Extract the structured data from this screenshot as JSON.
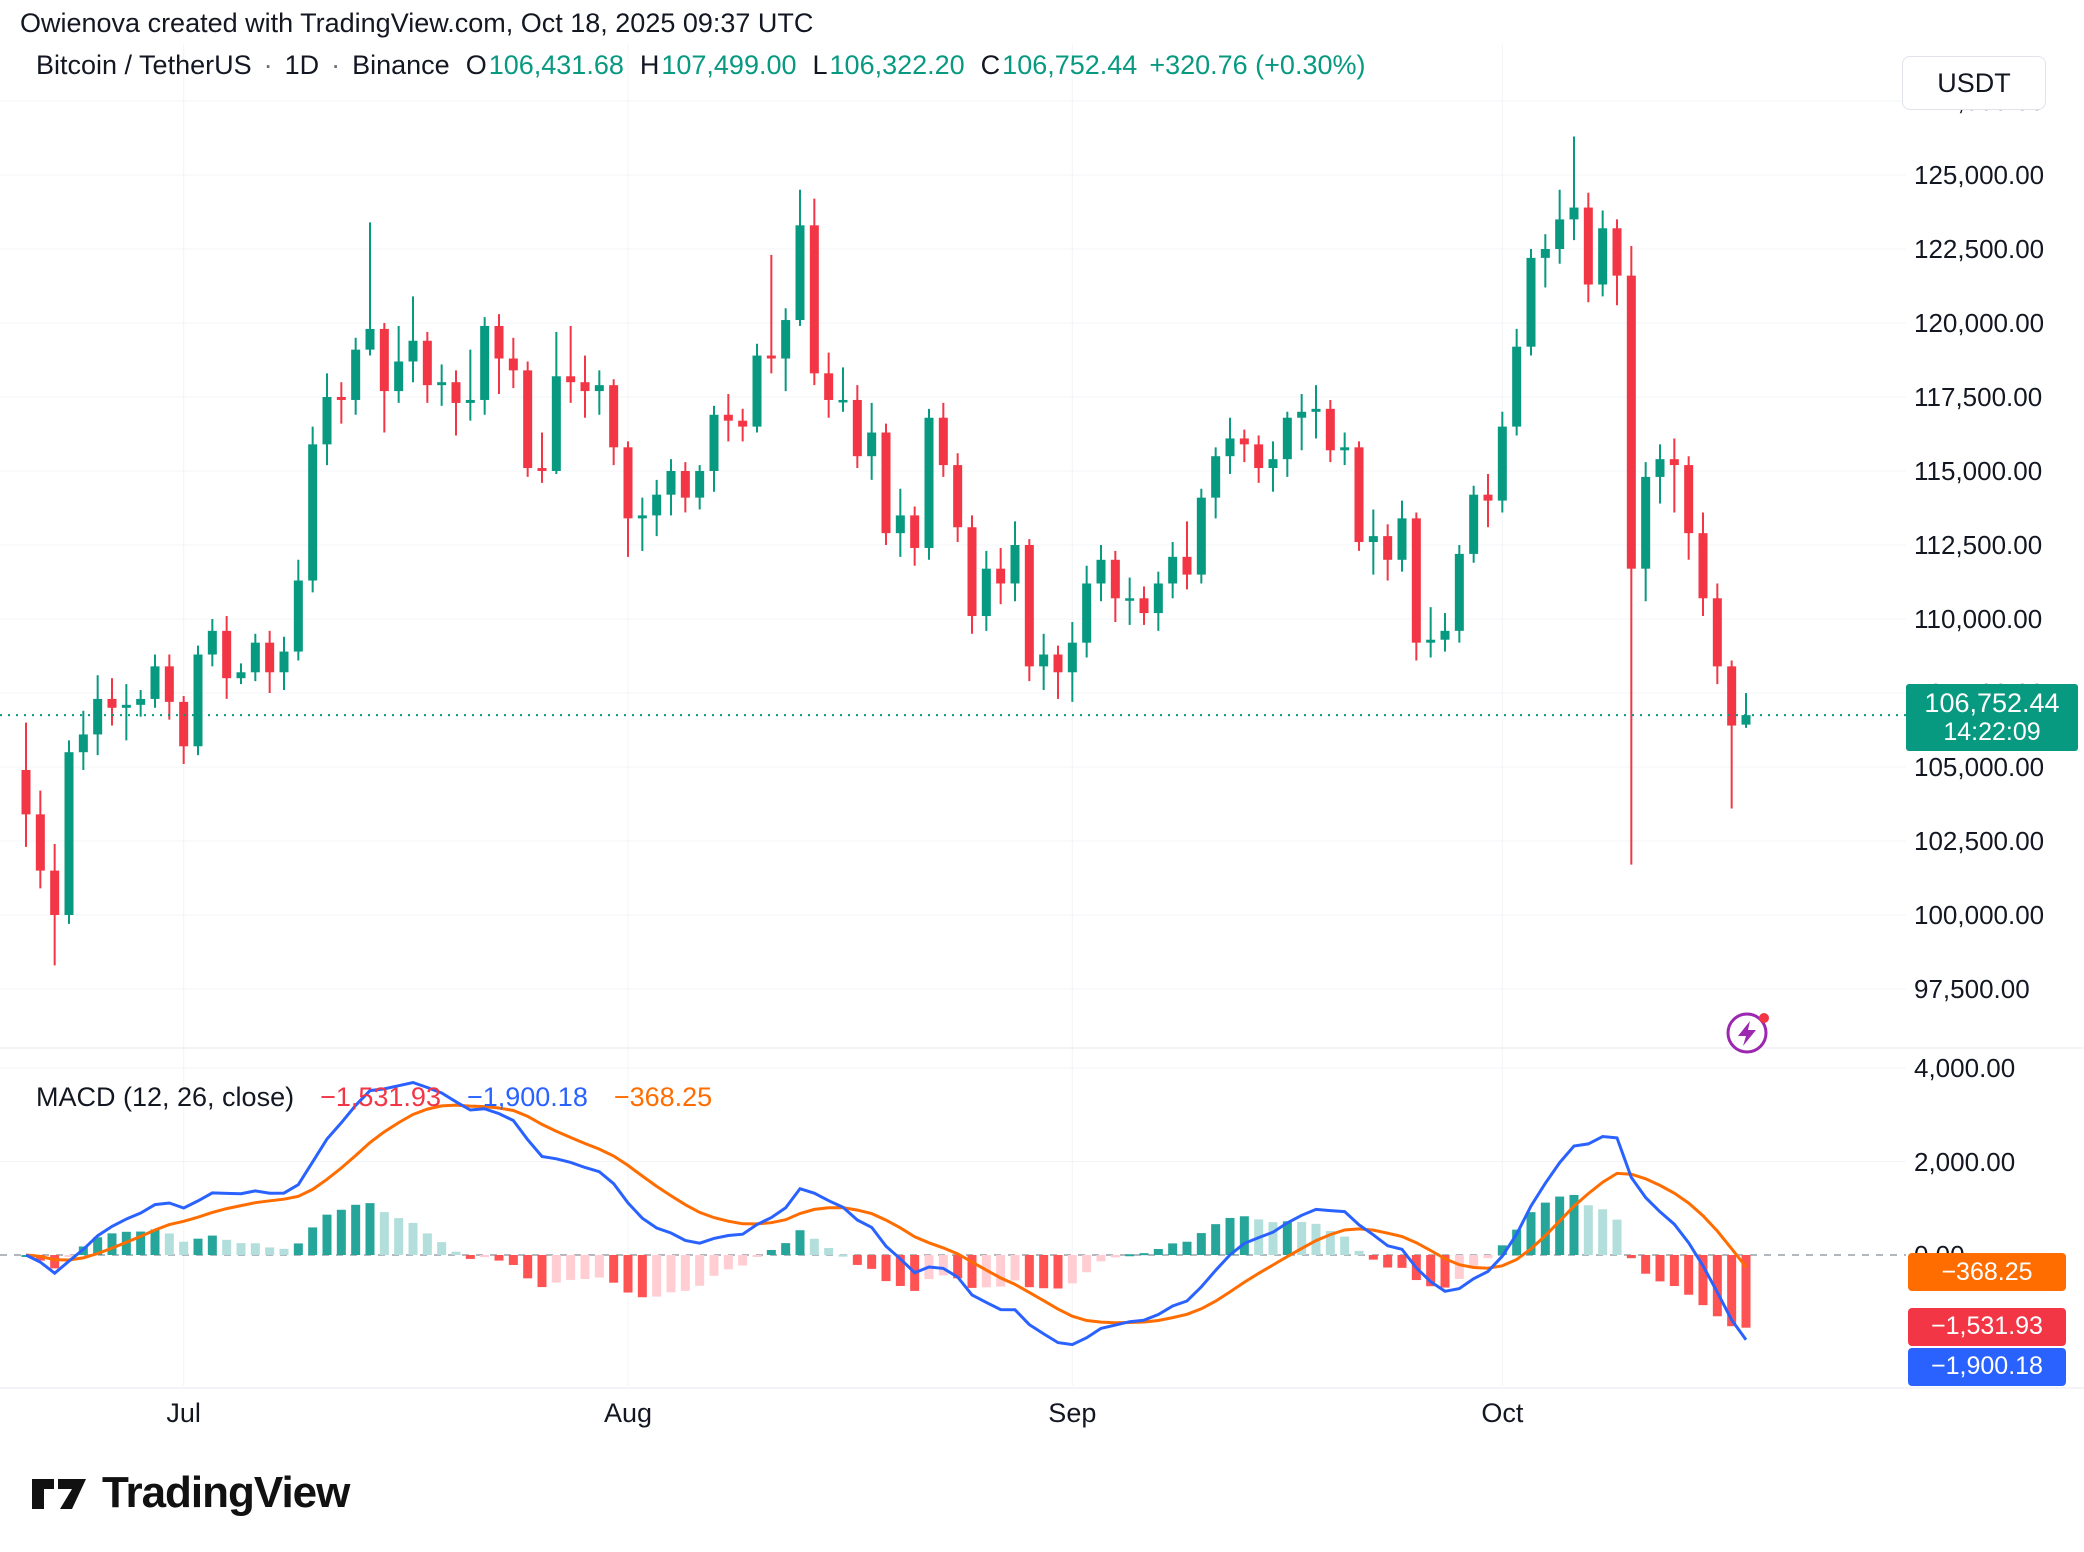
{
  "attribution": "Owienova created with TradingView.com, Oct 18, 2025 09:37 UTC",
  "header": {
    "symbol": "Bitcoin / TetherUS",
    "separator": "·",
    "interval": "1D",
    "exchange": "Binance",
    "ohlc": [
      {
        "key": "O",
        "value": "106,431.68"
      },
      {
        "key": "H",
        "value": "107,499.00"
      },
      {
        "key": "L",
        "value": "106,322.20"
      },
      {
        "key": "C",
        "value": "106,752.44"
      }
    ],
    "change": "+320.76 (+0.30%)",
    "currency_button": "USDT"
  },
  "price_line": {
    "value": 106752.44,
    "label": "106,752.44",
    "countdown": "14:22:09"
  },
  "price_scale": {
    "ticks": [
      {
        "value": 127500,
        "label": "127,500.00"
      },
      {
        "value": 125000,
        "label": "125,000.00"
      },
      {
        "value": 122500,
        "label": "122,500.00"
      },
      {
        "value": 120000,
        "label": "120,000.00"
      },
      {
        "value": 117500,
        "label": "117,500.00"
      },
      {
        "value": 115000,
        "label": "115,000.00"
      },
      {
        "value": 112500,
        "label": "112,500.00"
      },
      {
        "value": 110000,
        "label": "110,000.00"
      },
      {
        "value": 107500,
        "label": "107,500.00"
      },
      {
        "value": 105000,
        "label": "105,000.00"
      },
      {
        "value": 102500,
        "label": "102,500.00"
      },
      {
        "value": 100000,
        "label": "100,000.00"
      },
      {
        "value": 97500,
        "label": "97,500.00"
      }
    ]
  },
  "macd_panel": {
    "title": "MACD (12, 26, close)",
    "header_values": [
      {
        "name": "histogram",
        "label": "−1,531.93",
        "color": "#f23645"
      },
      {
        "name": "macd",
        "label": "−1,900.18",
        "color": "#2962ff"
      },
      {
        "name": "signal",
        "label": "−368.25",
        "color": "#ff6d00"
      }
    ],
    "ticks": [
      {
        "value": 4000,
        "label": "4,000.00"
      },
      {
        "value": 2000,
        "label": "2,000.00"
      },
      {
        "value": 0,
        "label": "0.00"
      }
    ],
    "badges": [
      {
        "name": "signal",
        "label": "−368.25",
        "value": -368.25,
        "color": "#ff6d00"
      },
      {
        "name": "histogram",
        "label": "−1,531.93",
        "value": -1531.93,
        "color": "#f23645"
      },
      {
        "name": "macd",
        "label": "−1,900.18",
        "value": -1900.18,
        "color": "#2962ff"
      }
    ]
  },
  "time_axis": {
    "labels": [
      {
        "text": "Jul",
        "index": 11
      },
      {
        "text": "Aug",
        "index": 42
      },
      {
        "text": "Sep",
        "index": 73
      },
      {
        "text": "Oct",
        "index": 103
      }
    ]
  },
  "logo": {
    "text": "TradingView"
  },
  "colors": {
    "up": "#089981",
    "down": "#f23645",
    "macd_line": "#2962ff",
    "macd_signal": "#ff6d00",
    "hist_up": "#26a69a",
    "hist_up_fade": "#b2dfdb",
    "hist_down": "#ff5252",
    "hist_down_fade": "#ffcdd2",
    "grid": "#f2f4f7",
    "zero_line": "#9aa0aa",
    "price_badge_bg": "#089981",
    "flash_purple": "#9c27b0",
    "dot_red": "#f23645"
  },
  "chart_data": {
    "type": "candlestick",
    "title": "Bitcoin / TetherUS · 1D · Binance",
    "interval": "1D",
    "quote_currency": "USDT",
    "last_close": 106752.44,
    "price_axis_ticks": [
      127500,
      125000,
      122500,
      120000,
      117500,
      115000,
      112500,
      110000,
      107500,
      105000,
      102500,
      100000,
      97500
    ],
    "macd_axis_ticks": [
      4000,
      2000,
      0
    ],
    "indicator": {
      "type": "macd",
      "params": [
        12,
        26,
        9
      ],
      "source": "close",
      "current": {
        "histogram": -1531.93,
        "macd": -1900.18,
        "signal": -368.25
      }
    },
    "month_start_indices": {
      "Jul": 11,
      "Aug": 42,
      "Sep": 73,
      "Oct": 103
    },
    "candles": [
      [
        104900,
        106500,
        102300,
        103400
      ],
      [
        103400,
        104200,
        100900,
        101500
      ],
      [
        101500,
        102400,
        98300,
        100000
      ],
      [
        100000,
        105900,
        99700,
        105500
      ],
      [
        105500,
        106900,
        104900,
        106100
      ],
      [
        106100,
        108100,
        105400,
        107300
      ],
      [
        107300,
        108000,
        106400,
        107000
      ],
      [
        107000,
        107800,
        105900,
        107100
      ],
      [
        107100,
        107600,
        106700,
        107300
      ],
      [
        107300,
        108800,
        107000,
        108400
      ],
      [
        108400,
        108800,
        106600,
        107200
      ],
      [
        107200,
        107400,
        105100,
        105700
      ],
      [
        105700,
        109100,
        105400,
        108800
      ],
      [
        108800,
        110000,
        108400,
        109600
      ],
      [
        109600,
        110100,
        107300,
        108000
      ],
      [
        108000,
        108500,
        107800,
        108200
      ],
      [
        108200,
        109500,
        107900,
        109200
      ],
      [
        109200,
        109600,
        107500,
        108200
      ],
      [
        108200,
        109400,
        107600,
        108900
      ],
      [
        108900,
        112000,
        108600,
        111300
      ],
      [
        111300,
        116500,
        110900,
        115900
      ],
      [
        115900,
        118300,
        115200,
        117500
      ],
      [
        117500,
        118000,
        116600,
        117400
      ],
      [
        117400,
        119500,
        116900,
        119100
      ],
      [
        119100,
        123400,
        118900,
        119800
      ],
      [
        119800,
        120000,
        116300,
        117700
      ],
      [
        117700,
        119900,
        117300,
        118700
      ],
      [
        118700,
        120900,
        118000,
        119400
      ],
      [
        119400,
        119700,
        117300,
        117900
      ],
      [
        117900,
        118600,
        117200,
        118000
      ],
      [
        118000,
        118400,
        116200,
        117300
      ],
      [
        117300,
        119100,
        116700,
        117400
      ],
      [
        117400,
        120200,
        116900,
        119900
      ],
      [
        119900,
        120300,
        117600,
        118800
      ],
      [
        118800,
        119500,
        117800,
        118400
      ],
      [
        118400,
        118700,
        114800,
        115100
      ],
      [
        115100,
        116300,
        114600,
        115000
      ],
      [
        115000,
        119700,
        114900,
        118200
      ],
      [
        118200,
        119900,
        117300,
        118000
      ],
      [
        118000,
        118900,
        116800,
        117700
      ],
      [
        117700,
        118400,
        116900,
        117900
      ],
      [
        117900,
        118100,
        115200,
        115800
      ],
      [
        115800,
        116000,
        112100,
        113400
      ],
      [
        113400,
        114100,
        112300,
        113500
      ],
      [
        113500,
        114700,
        112800,
        114200
      ],
      [
        114200,
        115400,
        113500,
        115000
      ],
      [
        115000,
        115300,
        113600,
        114100
      ],
      [
        114100,
        115200,
        113700,
        115000
      ],
      [
        115000,
        117200,
        114300,
        116900
      ],
      [
        116900,
        117600,
        116000,
        116700
      ],
      [
        116700,
        117100,
        116000,
        116500
      ],
      [
        116500,
        119300,
        116300,
        118900
      ],
      [
        118900,
        122300,
        118300,
        118800
      ],
      [
        118800,
        120500,
        117700,
        120100
      ],
      [
        120100,
        124500,
        119900,
        123300
      ],
      [
        123300,
        124200,
        117900,
        118300
      ],
      [
        118300,
        119000,
        116800,
        117400
      ],
      [
        117400,
        118500,
        117000,
        117400
      ],
      [
        117400,
        117900,
        115100,
        115500
      ],
      [
        115500,
        117300,
        114700,
        116300
      ],
      [
        116300,
        116600,
        112500,
        112900
      ],
      [
        112900,
        114400,
        112100,
        113500
      ],
      [
        113500,
        113800,
        111800,
        112400
      ],
      [
        112400,
        117100,
        112000,
        116800
      ],
      [
        116800,
        117300,
        114800,
        115200
      ],
      [
        115200,
        115600,
        112600,
        113100
      ],
      [
        113100,
        113500,
        109500,
        110100
      ],
      [
        110100,
        112300,
        109600,
        111700
      ],
      [
        111700,
        112400,
        110500,
        111200
      ],
      [
        111200,
        113300,
        110600,
        112500
      ],
      [
        112500,
        112700,
        107900,
        108400
      ],
      [
        108400,
        109500,
        107600,
        108800
      ],
      [
        108800,
        109100,
        107300,
        108200
      ],
      [
        108200,
        109900,
        107200,
        109200
      ],
      [
        109200,
        111800,
        108700,
        111200
      ],
      [
        111200,
        112500,
        110600,
        112000
      ],
      [
        112000,
        112300,
        109900,
        110700
      ],
      [
        110700,
        111400,
        109800,
        110700
      ],
      [
        110700,
        111100,
        109800,
        110200
      ],
      [
        110200,
        111600,
        109600,
        111200
      ],
      [
        111200,
        112600,
        110700,
        112100
      ],
      [
        112100,
        113300,
        111000,
        111500
      ],
      [
        111500,
        114400,
        111200,
        114100
      ],
      [
        114100,
        115800,
        113400,
        115500
      ],
      [
        115500,
        116800,
        114900,
        116100
      ],
      [
        116100,
        116400,
        115300,
        115900
      ],
      [
        115900,
        116200,
        114600,
        115100
      ],
      [
        115100,
        116000,
        114300,
        115400
      ],
      [
        115400,
        117000,
        114800,
        116800
      ],
      [
        116800,
        117600,
        115700,
        117000
      ],
      [
        117000,
        117900,
        116100,
        117100
      ],
      [
        117100,
        117400,
        115300,
        115700
      ],
      [
        115700,
        116300,
        115200,
        115800
      ],
      [
        115800,
        116000,
        112300,
        112600
      ],
      [
        112600,
        113700,
        111500,
        112800
      ],
      [
        112800,
        113200,
        111300,
        112000
      ],
      [
        112000,
        114000,
        111600,
        113400
      ],
      [
        113400,
        113600,
        108600,
        109200
      ],
      [
        109200,
        110400,
        108700,
        109300
      ],
      [
        109300,
        110200,
        108900,
        109600
      ],
      [
        109600,
        112500,
        109200,
        112200
      ],
      [
        112200,
        114500,
        111900,
        114200
      ],
      [
        114200,
        114900,
        113100,
        114000
      ],
      [
        114000,
        117000,
        113600,
        116500
      ],
      [
        116500,
        119800,
        116200,
        119200
      ],
      [
        119200,
        122500,
        118900,
        122200
      ],
      [
        122200,
        123000,
        121200,
        122500
      ],
      [
        122500,
        124500,
        122000,
        123500
      ],
      [
        123500,
        126300,
        122800,
        123900
      ],
      [
        123900,
        124400,
        120700,
        121300
      ],
      [
        121300,
        123800,
        120900,
        123200
      ],
      [
        123200,
        123500,
        120600,
        121600
      ],
      [
        121600,
        122600,
        101700,
        111700
      ],
      [
        111700,
        115300,
        110600,
        114800
      ],
      [
        114800,
        115900,
        113900,
        115400
      ],
      [
        115400,
        116100,
        113600,
        115200
      ],
      [
        115200,
        115500,
        112000,
        112900
      ],
      [
        112900,
        113600,
        110100,
        110700
      ],
      [
        110700,
        111200,
        107800,
        108400
      ],
      [
        108400,
        108600,
        103600,
        106400
      ],
      [
        106431.68,
        107499,
        106322.2,
        106752.44
      ]
    ]
  }
}
